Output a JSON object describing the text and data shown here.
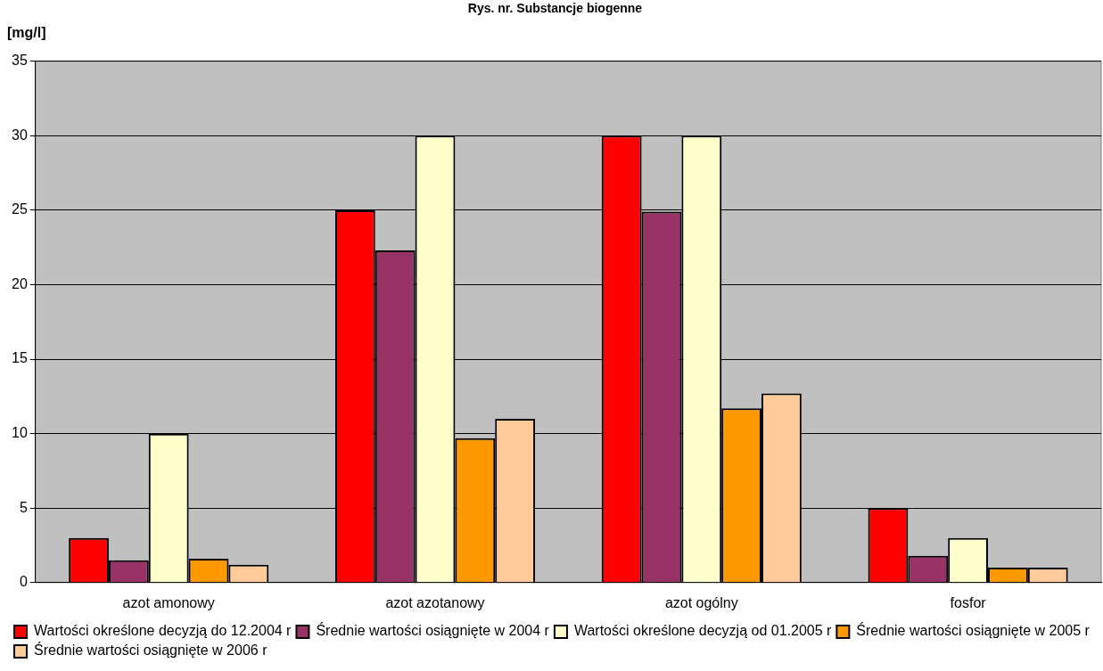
{
  "chart_data": {
    "type": "bar",
    "title": "Rys. nr. Substancje biogenne",
    "ylabel": "[mg/l]",
    "categories": [
      "azot amonowy",
      "azot azotanowy",
      "azot ogólny",
      "fosfor"
    ],
    "series": [
      {
        "name": "Wartości określone decyzją do 12.2004 r",
        "color": "#ff0000",
        "values": [
          3,
          25,
          30,
          5
        ]
      },
      {
        "name": "Średnie wartości osiągnięte w 2004 r",
        "color": "#993366",
        "values": [
          1.5,
          22.3,
          24.9,
          1.8
        ]
      },
      {
        "name": "Wartości określone decyzją od 01.2005 r",
        "color": "#ffffcc",
        "values": [
          10,
          30,
          30,
          3
        ]
      },
      {
        "name": "Średnie wartości osiągnięte w 2005 r",
        "color": "#ff9900",
        "values": [
          1.6,
          9.7,
          11.7,
          1.0
        ]
      },
      {
        "name": "Średnie wartości osiągnięte w 2006 r",
        "color": "#ffcc99",
        "values": [
          1.2,
          11,
          12.7,
          1.0
        ]
      }
    ],
    "ylim": [
      0,
      35
    ],
    "yticks": [
      0,
      5,
      10,
      15,
      20,
      25,
      30,
      35
    ],
    "grid": "y",
    "legend": "bottom"
  }
}
